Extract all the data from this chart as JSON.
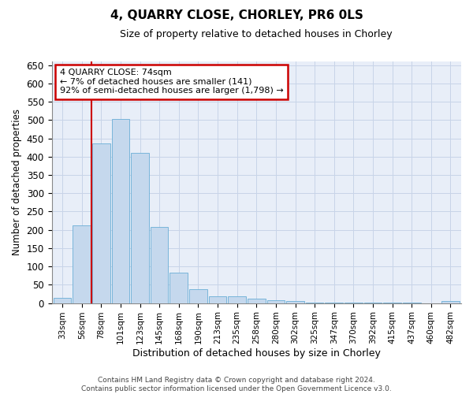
{
  "title": "4, QUARRY CLOSE, CHORLEY, PR6 0LS",
  "subtitle": "Size of property relative to detached houses in Chorley",
  "xlabel": "Distribution of detached houses by size in Chorley",
  "ylabel": "Number of detached properties",
  "categories": [
    "33sqm",
    "56sqm",
    "78sqm",
    "101sqm",
    "123sqm",
    "145sqm",
    "168sqm",
    "190sqm",
    "213sqm",
    "235sqm",
    "258sqm",
    "280sqm",
    "302sqm",
    "325sqm",
    "347sqm",
    "370sqm",
    "392sqm",
    "415sqm",
    "437sqm",
    "460sqm",
    "482sqm"
  ],
  "values": [
    15,
    213,
    437,
    503,
    410,
    207,
    84,
    38,
    18,
    18,
    13,
    8,
    5,
    2,
    2,
    1,
    1,
    1,
    1,
    0,
    5
  ],
  "bar_color": "#c5d8ed",
  "bar_edge_color": "#6aaed6",
  "red_line_x": 1.5,
  "annotation_title": "4 QUARRY CLOSE: 74sqm",
  "annotation_line1": "← 7% of detached houses are smaller (141)",
  "annotation_line2": "92% of semi-detached houses are larger (1,798) →",
  "annotation_box_color": "#ffffff",
  "annotation_box_edge_color": "#cc0000",
  "red_line_color": "#cc0000",
  "ylim": [
    0,
    660
  ],
  "yticks": [
    0,
    50,
    100,
    150,
    200,
    250,
    300,
    350,
    400,
    450,
    500,
    550,
    600,
    650
  ],
  "footer1": "Contains HM Land Registry data © Crown copyright and database right 2024.",
  "footer2": "Contains public sector information licensed under the Open Government Licence v3.0.",
  "grid_color": "#c8d4e8",
  "background_color": "#e8eef8"
}
